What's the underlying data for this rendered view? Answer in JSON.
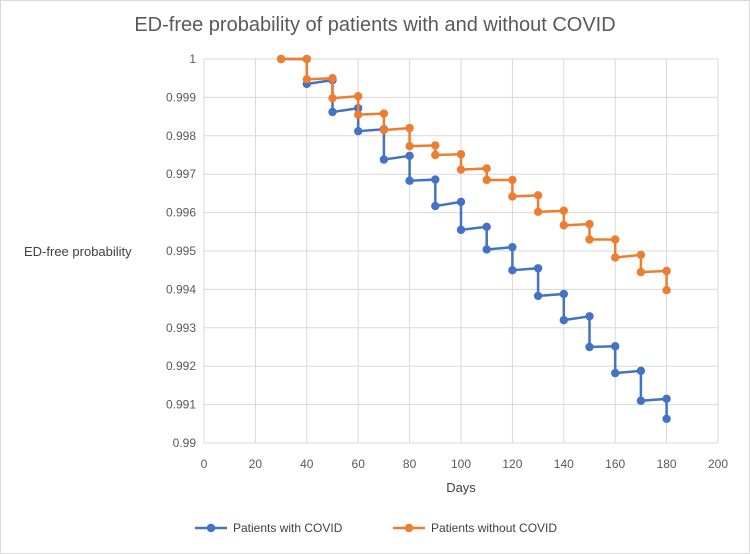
{
  "chart_data": {
    "type": "line",
    "title": "ED-free probability of patients with and without COVID",
    "xlabel": "Days",
    "ylabel": "ED-free probability",
    "xlim": [
      0,
      200
    ],
    "ylim": [
      0.99,
      1
    ],
    "x_ticks": [
      "0",
      "20",
      "40",
      "60",
      "80",
      "100",
      "120",
      "140",
      "160",
      "180",
      "200"
    ],
    "y_ticks": [
      "0.99",
      "0.991",
      "0.992",
      "0.993",
      "0.994",
      "0.995",
      "0.996",
      "0.997",
      "0.998",
      "0.999",
      "1"
    ],
    "grid": true,
    "legend_position": "bottom",
    "series": [
      {
        "name": "Patients with COVID",
        "color": "#4472c4",
        "points": [
          [
            30,
            1.0
          ],
          [
            40,
            1.0
          ],
          [
            40,
            0.99935
          ],
          [
            50,
            0.99945
          ],
          [
            50,
            0.99862
          ],
          [
            60,
            0.99872
          ],
          [
            60,
            0.99812
          ],
          [
            70,
            0.99817
          ],
          [
            70,
            0.99738
          ],
          [
            80,
            0.99748
          ],
          [
            80,
            0.99683
          ],
          [
            90,
            0.99686
          ],
          [
            90,
            0.99617
          ],
          [
            100,
            0.99628
          ],
          [
            100,
            0.99555
          ],
          [
            110,
            0.99563
          ],
          [
            110,
            0.99504
          ],
          [
            120,
            0.9951
          ],
          [
            120,
            0.9945
          ],
          [
            130,
            0.99455
          ],
          [
            130,
            0.99383
          ],
          [
            140,
            0.99388
          ],
          [
            140,
            0.9932
          ],
          [
            150,
            0.9933
          ],
          [
            150,
            0.9925
          ],
          [
            160,
            0.99252
          ],
          [
            160,
            0.99182
          ],
          [
            170,
            0.99188
          ],
          [
            170,
            0.9911
          ],
          [
            180,
            0.99115
          ],
          [
            180,
            0.99063
          ]
        ]
      },
      {
        "name": "Patients without COVID",
        "color": "#ed7d31",
        "points": [
          [
            30,
            1.0
          ],
          [
            40,
            1.0
          ],
          [
            40,
            0.99947
          ],
          [
            50,
            0.9995
          ],
          [
            50,
            0.99898
          ],
          [
            60,
            0.99903
          ],
          [
            60,
            0.99855
          ],
          [
            70,
            0.99858
          ],
          [
            70,
            0.99815
          ],
          [
            80,
            0.9982
          ],
          [
            80,
            0.99773
          ],
          [
            90,
            0.99775
          ],
          [
            90,
            0.9975
          ],
          [
            100,
            0.99752
          ],
          [
            100,
            0.99712
          ],
          [
            110,
            0.99715
          ],
          [
            110,
            0.99685
          ],
          [
            120,
            0.99685
          ],
          [
            120,
            0.99642
          ],
          [
            130,
            0.99645
          ],
          [
            130,
            0.99602
          ],
          [
            140,
            0.99605
          ],
          [
            140,
            0.99567
          ],
          [
            150,
            0.9957
          ],
          [
            150,
            0.9953
          ],
          [
            160,
            0.9953
          ],
          [
            160,
            0.99483
          ],
          [
            170,
            0.9949
          ],
          [
            170,
            0.99445
          ],
          [
            180,
            0.99448
          ],
          [
            180,
            0.99398
          ]
        ]
      }
    ]
  }
}
